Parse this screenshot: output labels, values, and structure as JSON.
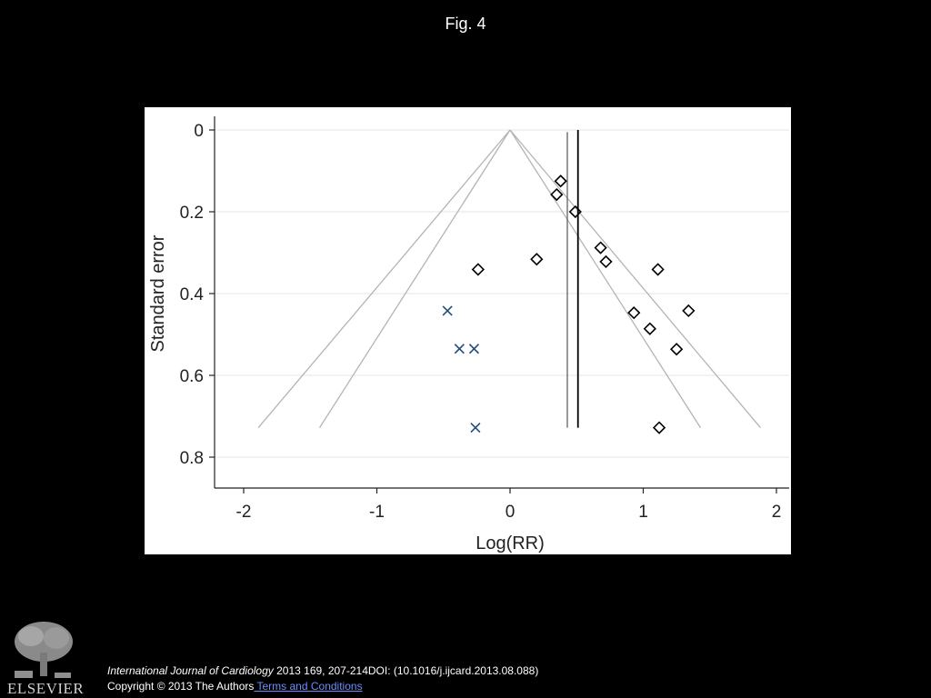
{
  "slide": {
    "title": "Fig. 4",
    "publisher_logo_text": "ELSEVIER",
    "citation_journal": "International Journal of Cardiology",
    "citation_rest": " 2013 169, 207-214DOI: (10.1016/j.ijcard.2013.08.088)",
    "copyright_text": "Copyright © 2013 The Authors",
    "terms_link": " Terms and Conditions"
  },
  "colors": {
    "background": "#000000",
    "plot_bg": "#ffffff",
    "funnel_lines": "#b4b4b4",
    "marker_diamond": "#000000",
    "marker_x": "#1f4e79",
    "pooled_line": "#000000"
  },
  "chart_data": {
    "type": "scatter",
    "title": "",
    "xlabel": "Log(RR)",
    "ylabel": "Standard error",
    "xlim": [
      -2.25,
      2.1
    ],
    "ylim": [
      0.85,
      -0.055
    ],
    "y_reversed": true,
    "xticks": [
      -2,
      -1,
      0,
      1,
      2
    ],
    "yticks": [
      0,
      0.2,
      0.4,
      0.6,
      0.8
    ],
    "xtick_labels": [
      "-2",
      "-1",
      "0",
      "1",
      "2"
    ],
    "ytick_labels": [
      "0",
      "0.2",
      "0.4",
      "0.6",
      "0.8"
    ],
    "grid": "horizontal",
    "funnel": {
      "apex": [
        0,
        0
      ],
      "outer": [
        [
          -1.89,
          0.728
        ],
        [
          1.88,
          0.728
        ]
      ],
      "inner": [
        [
          -1.43,
          0.728
        ],
        [
          1.43,
          0.728
        ]
      ]
    },
    "vertical_lines": [
      {
        "x": 0.43,
        "y_range": [
          0.005,
          0.728
        ]
      },
      {
        "x": 0.51,
        "y_range": [
          0.0,
          0.728
        ]
      }
    ],
    "series": [
      {
        "marker": "diamond",
        "x": [
          0.38,
          0.35,
          0.49,
          0.2,
          -0.24,
          0.68,
          0.72,
          1.11,
          1.34,
          0.93,
          1.05,
          1.25,
          1.12
        ],
        "y": [
          0.125,
          0.158,
          0.2,
          0.316,
          0.341,
          0.288,
          0.322,
          0.341,
          0.442,
          0.447,
          0.486,
          0.536,
          0.728
        ]
      },
      {
        "marker": "x",
        "x": [
          -0.47,
          -0.38,
          -0.27,
          -0.26
        ],
        "y": [
          0.442,
          0.535,
          0.535,
          0.728
        ]
      }
    ]
  }
}
